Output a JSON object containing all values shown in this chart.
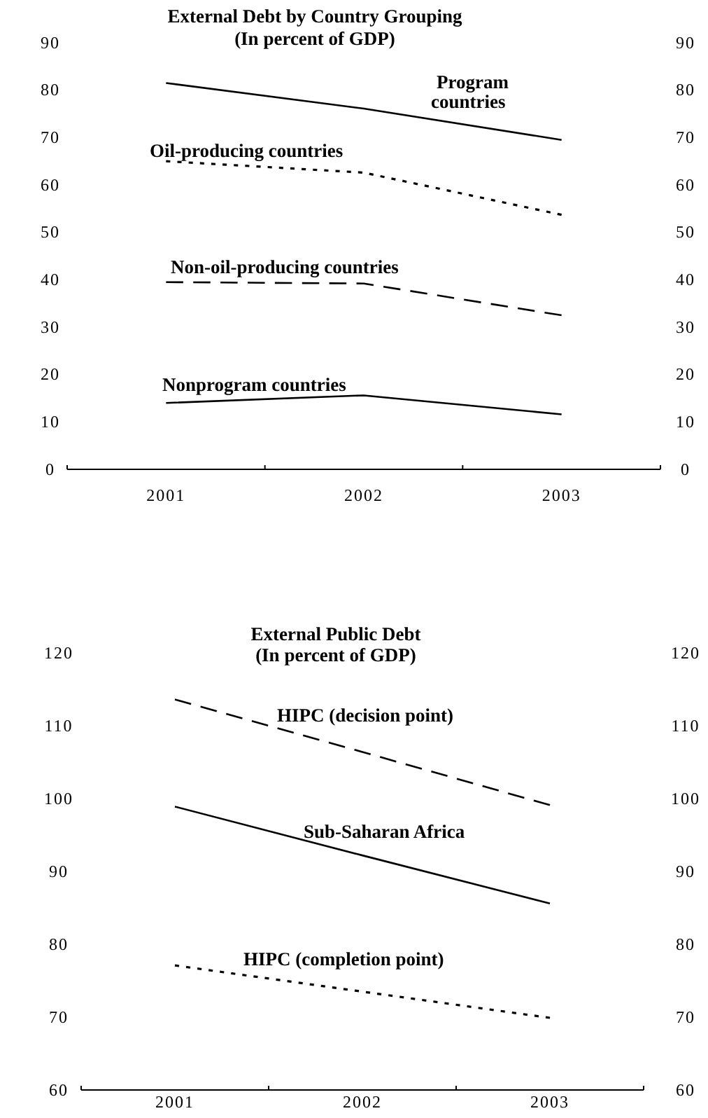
{
  "chart_data": [
    {
      "type": "line",
      "title": "External Debt by Country Grouping",
      "subtitle": "(In percent of GDP)",
      "categories": [
        "2001",
        "2002",
        "2003"
      ],
      "series": [
        {
          "name": "Program countries",
          "color": "#000000",
          "line_style": "solid",
          "values": [
            81.5,
            76.1,
            69.5
          ]
        },
        {
          "name": "Oil-producing countries",
          "color": "#000000",
          "line_style": "dotted",
          "values": [
            65,
            62.6,
            53.7
          ]
        },
        {
          "name": "Non-oil-producing countries",
          "color": "#000000",
          "line_style": "dashed",
          "values": [
            39.5,
            39.2,
            32.5
          ]
        },
        {
          "name": "Nonprogram countries",
          "color": "#000000",
          "line_style": "solid",
          "values": [
            14,
            15.6,
            11.6
          ]
        }
      ],
      "ylim": [
        0,
        90
      ],
      "yticks": [
        0,
        10,
        20,
        30,
        40,
        50,
        60,
        70,
        80,
        90
      ],
      "y2lim": [
        0,
        90
      ],
      "y2ticks": [
        0,
        10,
        20,
        30,
        40,
        50,
        60,
        70,
        80,
        90
      ],
      "grid": false,
      "legend": false
    },
    {
      "type": "line",
      "title": "External Public Debt",
      "subtitle": "(In percent of GDP)",
      "categories": [
        "2001",
        "2002",
        "2003"
      ],
      "series": [
        {
          "name": "HIPC (decision point)",
          "color": "#000000",
          "line_style": "dashed",
          "values": [
            113.6,
            106.4,
            99.1
          ]
        },
        {
          "name": "Sub-Saharan Africa",
          "color": "#000000",
          "line_style": "solid",
          "values": [
            98.9,
            92.2,
            85.6
          ]
        },
        {
          "name": "HIPC (completion point)",
          "color": "#000000",
          "line_style": "dotted",
          "values": [
            77.1,
            73.5,
            69.9
          ]
        }
      ],
      "ylim": [
        60,
        120
      ],
      "yticks": [
        60,
        70,
        80,
        90,
        100,
        110,
        120
      ],
      "y2lim": [
        60,
        120
      ],
      "y2ticks": [
        60,
        70,
        80,
        90,
        100,
        110,
        120
      ],
      "grid": false,
      "legend": false
    }
  ]
}
